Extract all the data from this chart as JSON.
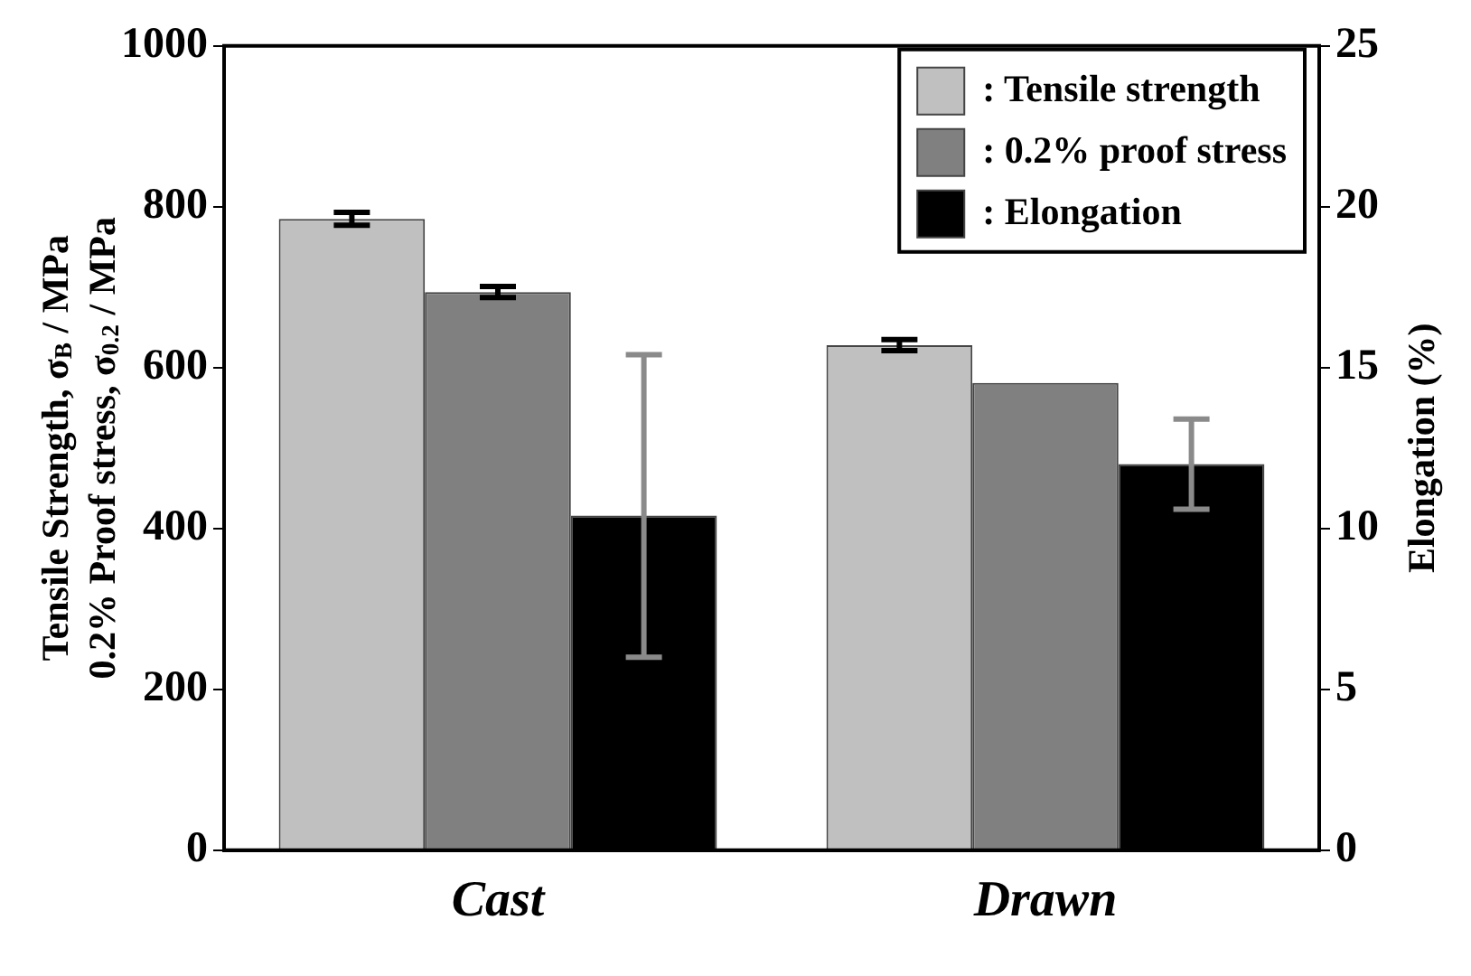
{
  "chart_data": {
    "type": "bar",
    "categories": [
      "Cast",
      "Drawn"
    ],
    "ylabel": "Tensile Strength, σ$_{B}$ / MPa\n0.2% Proof stress, σ$_{0.2}$ / MPa",
    "y2label": "Elongation (%)",
    "series": [
      {
        "name": ": Tensile strength",
        "color": "#c0c0c0",
        "values": [
          785,
          628
        ],
        "errors": [
          8,
          7
        ]
      },
      {
        "name": ": 0.2% proof stress",
        "color": "#808080",
        "values": [
          694,
          581
        ],
        "errors": [
          7,
          null
        ]
      },
      {
        "name": ": Elongation",
        "color": "#000000",
        "axis": "y2",
        "values": [
          10.4,
          12.0
        ],
        "errors": [
          [
            6.0,
            15.4
          ],
          1.4
        ]
      }
    ],
    "ylim": [
      0,
      1000
    ],
    "yticks": [
      0,
      200,
      400,
      600,
      800,
      1000
    ],
    "y2lim": [
      0,
      25
    ],
    "y2ticks": [
      0,
      5,
      10,
      15,
      20,
      25
    ],
    "grid": false,
    "legend": "top right"
  }
}
